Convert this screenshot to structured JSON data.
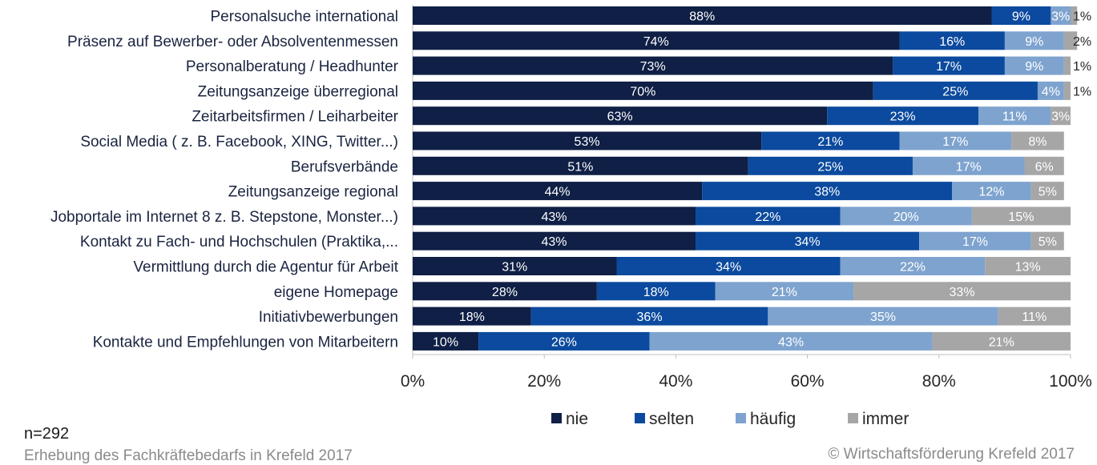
{
  "chart_data": {
    "type": "bar",
    "orientation": "horizontal",
    "stacked": "percent",
    "categories": [
      "Personalsuche international",
      "Präsenz auf Bewerber- oder Absolventenmessen",
      "Personalberatung / Headhunter",
      "Zeitungsanzeige überregional",
      "Zeitarbeitsfirmen / Leiharbeiter",
      "Social Media ( z. B. Facebook, XING, Twitter...)",
      "Berufsverbände",
      "Zeitungsanzeige regional",
      "Jobportale im Internet 8 z. B. Stepstone, Monster...)",
      "Kontakt zu Fach- und Hochschulen (Praktika,...",
      "Vermittlung durch die Agentur für Arbeit",
      "eigene Homepage",
      "Initiativbewerbungen",
      "Kontakte und Empfehlungen von Mitarbeitern"
    ],
    "series": [
      {
        "name": "nie",
        "color": "#0f1f45",
        "values": [
          88,
          74,
          73,
          70,
          63,
          53,
          51,
          44,
          43,
          43,
          31,
          28,
          18,
          10
        ]
      },
      {
        "name": "selten",
        "color": "#0b4a9e",
        "values": [
          9,
          16,
          17,
          25,
          23,
          21,
          25,
          38,
          22,
          34,
          34,
          18,
          36,
          26
        ]
      },
      {
        "name": "häufig",
        "color": "#7ea3cf",
        "values": [
          3,
          9,
          9,
          4,
          11,
          17,
          17,
          12,
          20,
          17,
          22,
          21,
          35,
          43
        ]
      },
      {
        "name": "immer",
        "color": "#a6a6a6",
        "values": [
          1,
          2,
          1,
          1,
          3,
          8,
          6,
          5,
          15,
          5,
          13,
          33,
          11,
          21
        ]
      }
    ],
    "xticks": [
      "0%",
      "20%",
      "40%",
      "60%",
      "80%",
      "100%"
    ],
    "xlim": [
      0,
      100
    ],
    "legend_position": "bottom",
    "grid": false
  },
  "footer": {
    "n": "n=292",
    "source": "Erhebung des Fachkräftebedarfs in Krefeld 2017",
    "copyright": "© Wirtschaftsförderung Krefeld 2017"
  }
}
